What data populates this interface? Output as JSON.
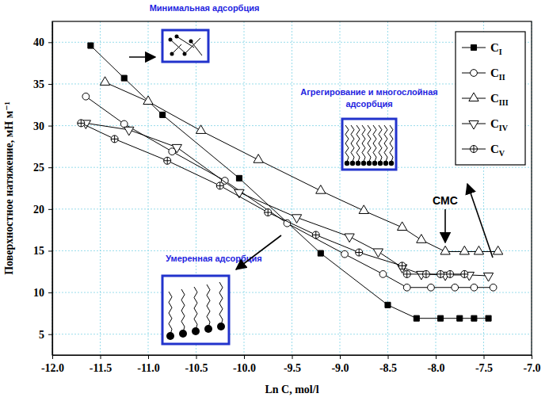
{
  "chart_data": {
    "type": "line",
    "x_label": "Ln C, mol/l",
    "y_label": "Поверхностное натяжение, мН м⁻¹",
    "xlim": [
      -12,
      -7
    ],
    "xticks": [
      {
        "value": -12,
        "label": "-12.0"
      },
      -11.5,
      {
        "value": -11,
        "label": "-11.0"
      },
      -10.5,
      {
        "value": -10,
        "label": "-10.0"
      },
      -9.5,
      {
        "value": -9,
        "label": "-9.0"
      },
      -8.5,
      {
        "value": -8,
        "label": "-8.0"
      },
      -7.5,
      {
        "value": -7,
        "label": "-7.0"
      }
    ],
    "ylim": [
      2.5,
      42.5
    ],
    "yticks": [
      5,
      10,
      15,
      20,
      25,
      30,
      35,
      40
    ],
    "grid": true,
    "legend": "upper right",
    "annotations": [
      "Минимальная адсорбция",
      "Агрегирование и многослойная адсорбция",
      "Умеренная адсорбция",
      "CMC"
    ],
    "series": [
      {
        "name": "CI",
        "color": "#000000",
        "marker": "filled-square",
        "x": [
          -11.6,
          -11.25,
          -10.85,
          -10.05,
          -9.2,
          -8.5,
          -8.2,
          -7.95,
          -7.75,
          -7.6,
          -7.45
        ],
        "values": [
          39.6,
          35.7,
          31.3,
          23.7,
          14.7,
          8.5,
          6.9,
          6.9,
          6.9,
          6.9,
          6.9
        ]
      },
      {
        "name": "CII",
        "color": "#000000",
        "marker": "circle",
        "x": [
          -11.65,
          -11.25,
          -10.75,
          -10.2,
          -9.55,
          -8.95,
          -8.55,
          -8.3,
          -8.05,
          -7.8,
          -7.6,
          -7.4
        ],
        "values": [
          33.5,
          30.2,
          26.9,
          23.4,
          18.3,
          14.6,
          12.2,
          10.6,
          10.6,
          10.6,
          10.6,
          10.6
        ]
      },
      {
        "name": "CIII",
        "color": "#000000",
        "marker": "triangle-up",
        "x": [
          -11.45,
          -11.0,
          -10.45,
          -9.85,
          -9.2,
          -8.75,
          -8.35,
          -8.15,
          -7.9,
          -7.7,
          -7.55,
          -7.35
        ],
        "values": [
          35.2,
          32.9,
          29.4,
          25.9,
          22.2,
          19.8,
          17.8,
          16.3,
          14.9,
          14.9,
          14.9,
          14.9
        ]
      },
      {
        "name": "CIV",
        "color": "#000000",
        "marker": "triangle-down",
        "x": [
          -11.65,
          -11.2,
          -10.7,
          -10.05,
          -9.45,
          -8.9,
          -8.6,
          -8.35,
          -8.15,
          -7.9,
          -7.65,
          -7.45
        ],
        "values": [
          30.3,
          29.5,
          27.4,
          22.0,
          19.0,
          16.7,
          14.9,
          13.0,
          12.2,
          12.1,
          12.1,
          12.0
        ]
      },
      {
        "name": "CV",
        "color": "#000000",
        "marker": "circle-cross",
        "x": [
          -11.7,
          -11.35,
          -10.8,
          -10.25,
          -9.75,
          -9.25,
          -8.8,
          -8.35,
          -8.3,
          -8.1,
          -7.95,
          -7.85,
          -7.7
        ],
        "values": [
          30.3,
          28.4,
          25.8,
          22.8,
          19.6,
          16.9,
          14.8,
          13.2,
          12.2,
          12.2,
          12.2,
          12.2,
          12.2
        ]
      }
    ]
  }
}
